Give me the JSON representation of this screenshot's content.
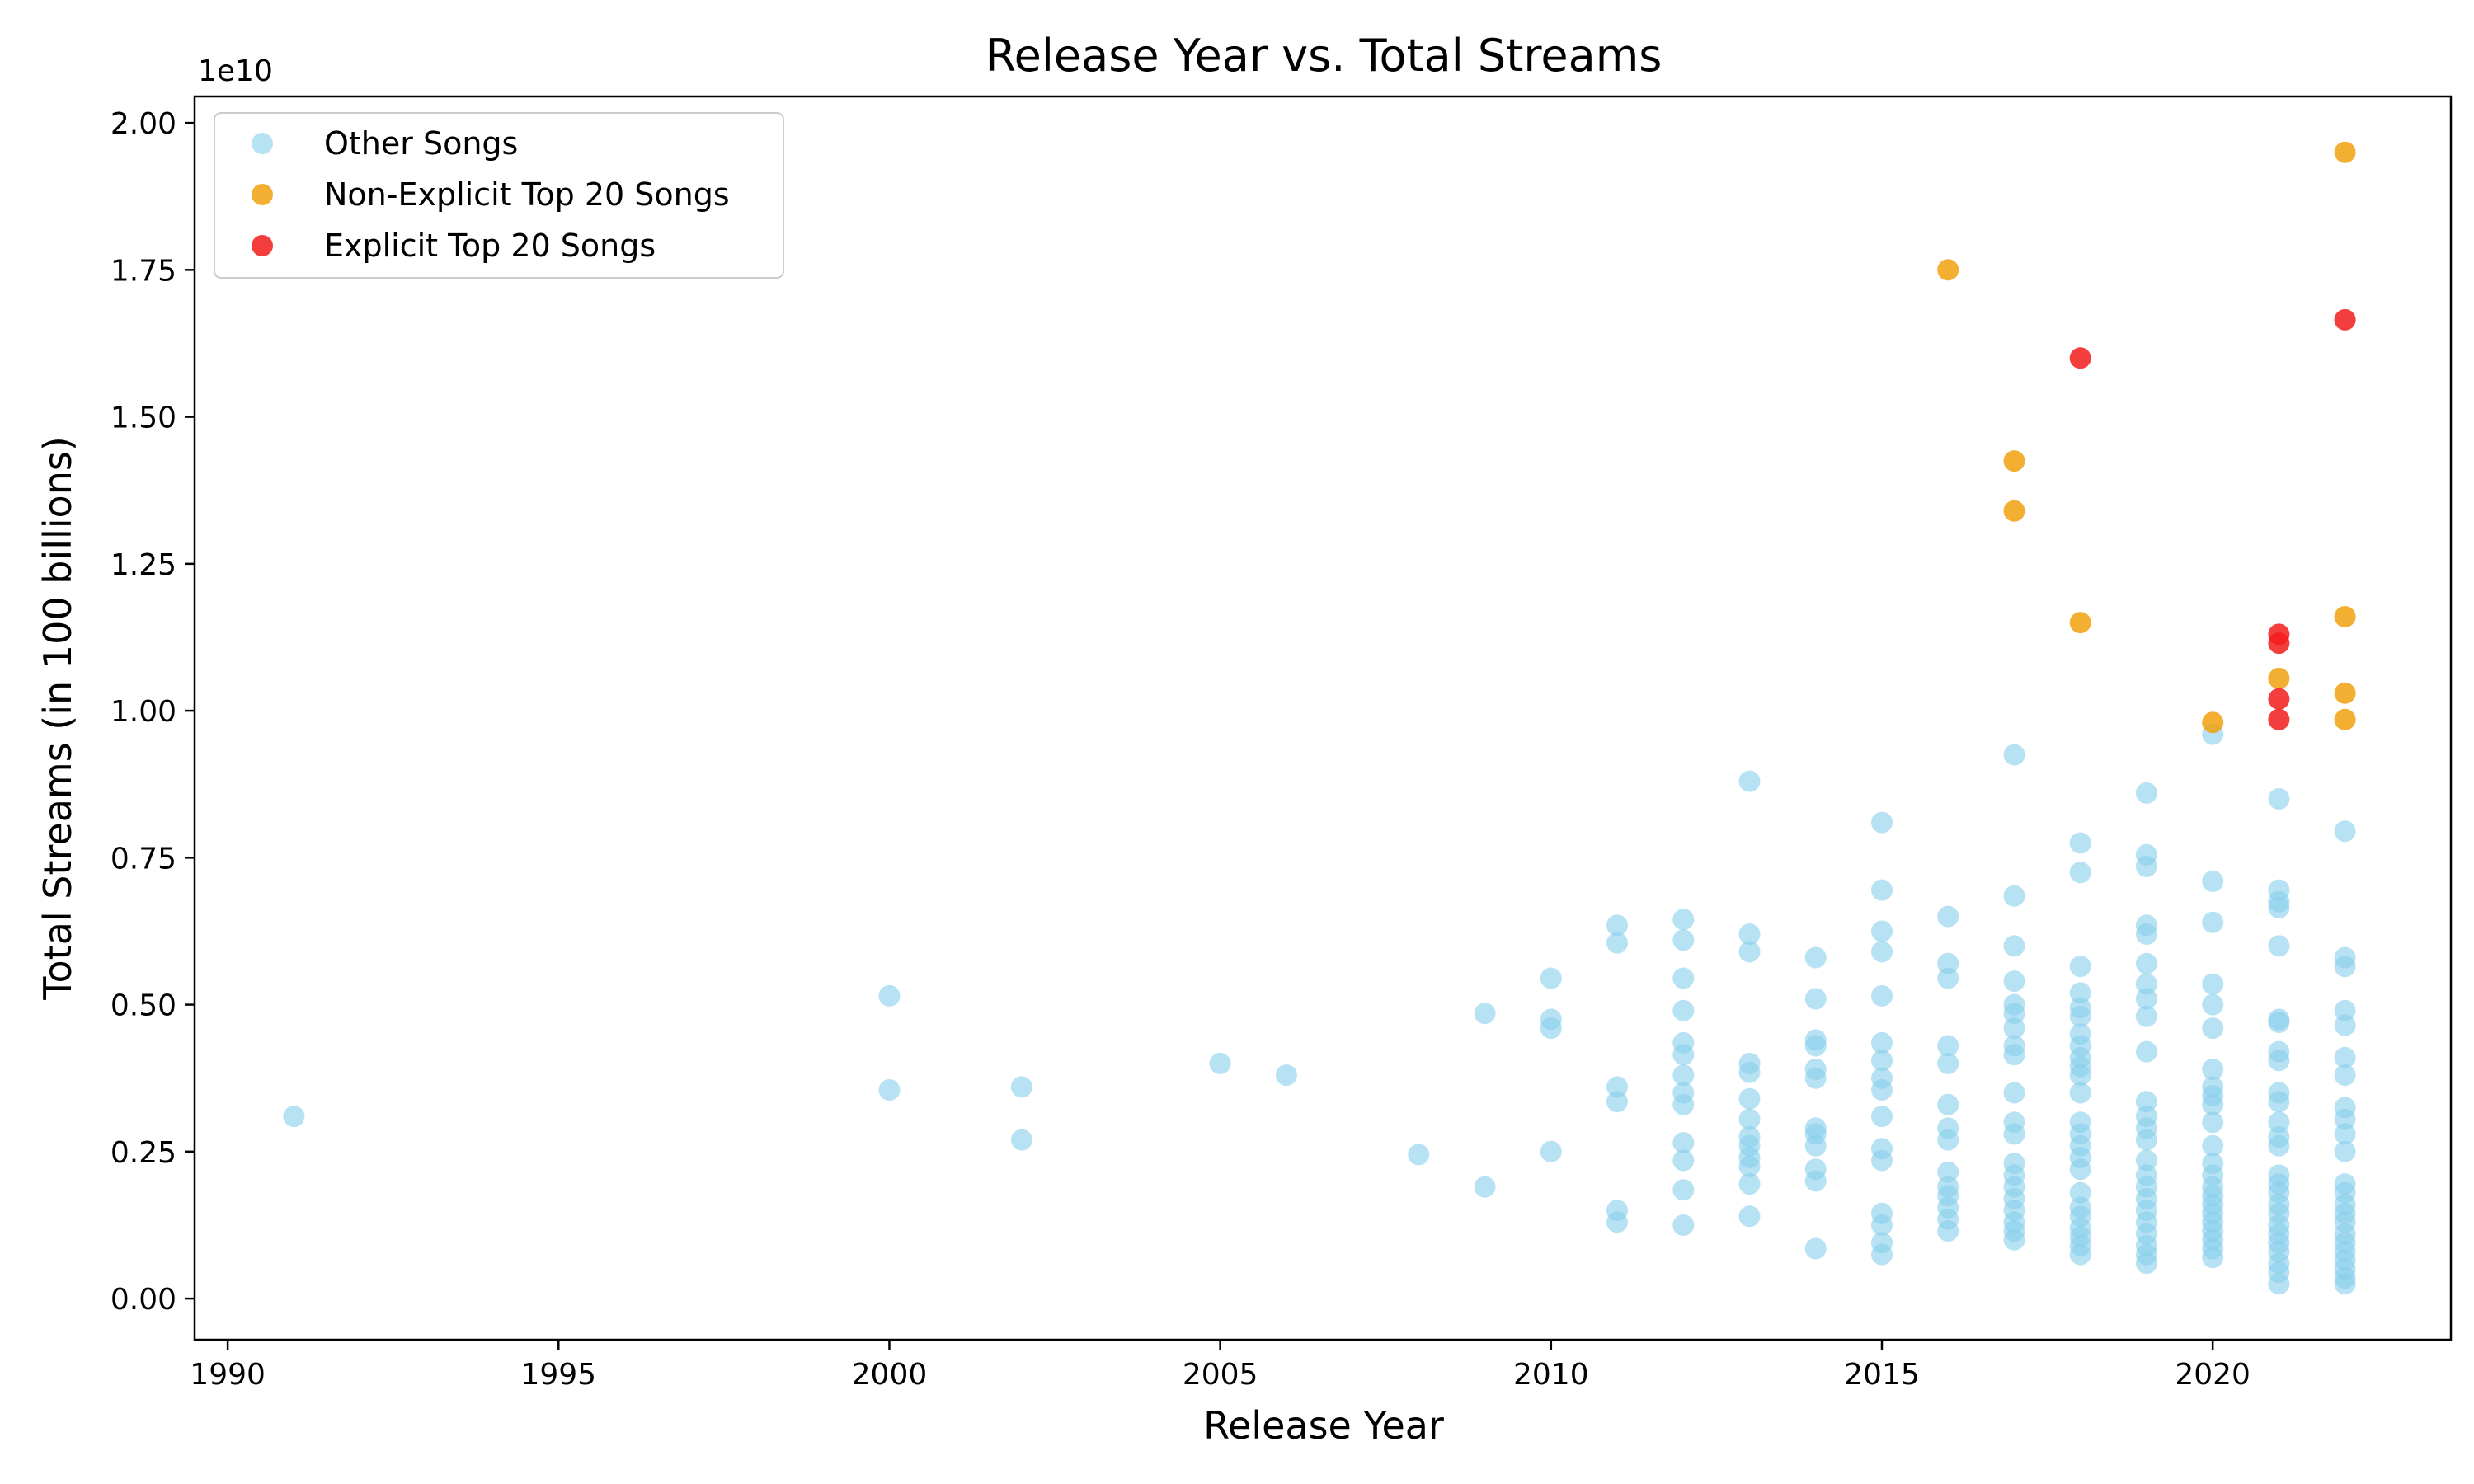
{
  "chart_data": {
    "type": "scatter",
    "title": "Release Year vs. Total Streams",
    "xlabel": "Release Year",
    "ylabel": "Total Streams (in 100 billions)",
    "y_offset_text": "1e10",
    "xlim": [
      1989.5,
      2023.6
    ],
    "ylim": [
      -0.7,
      20.45
    ],
    "x_ticks": [
      1990,
      1995,
      2000,
      2005,
      2010,
      2015,
      2020
    ],
    "x_tick_labels": [
      "1990",
      "1995",
      "2000",
      "2005",
      "2010",
      "2015",
      "2020"
    ],
    "y_ticks": [
      0,
      2.5,
      5,
      7.5,
      10,
      12.5,
      15,
      17.5,
      20
    ],
    "y_tick_labels": [
      "0.00",
      "0.25",
      "0.50",
      "0.75",
      "1.00",
      "1.25",
      "1.50",
      "1.75",
      "2.00"
    ],
    "y_unit_note": "y values are in units of 1e9 streams (axis shows multiples of 1e10)",
    "grid": false,
    "legend_position": "top-left",
    "series": [
      {
        "name": "Other Songs",
        "color": "#87CEEB",
        "points": [
          [
            1991,
            3.1
          ],
          [
            2000,
            5.15
          ],
          [
            2000,
            3.55
          ],
          [
            2002,
            3.6
          ],
          [
            2002,
            2.7
          ],
          [
            2005,
            4.0
          ],
          [
            2006,
            3.8
          ],
          [
            2008,
            2.45
          ],
          [
            2009,
            4.85
          ],
          [
            2009,
            1.9
          ],
          [
            2010,
            5.45
          ],
          [
            2010,
            4.75
          ],
          [
            2010,
            4.6
          ],
          [
            2010,
            2.5
          ],
          [
            2011,
            6.35
          ],
          [
            2011,
            6.05
          ],
          [
            2011,
            3.6
          ],
          [
            2011,
            3.35
          ],
          [
            2011,
            1.5
          ],
          [
            2011,
            1.3
          ],
          [
            2012,
            6.45
          ],
          [
            2012,
            6.1
          ],
          [
            2012,
            5.45
          ],
          [
            2012,
            4.9
          ],
          [
            2012,
            4.35
          ],
          [
            2012,
            4.15
          ],
          [
            2012,
            3.8
          ],
          [
            2012,
            3.5
          ],
          [
            2012,
            3.3
          ],
          [
            2012,
            2.65
          ],
          [
            2012,
            2.35
          ],
          [
            2012,
            1.85
          ],
          [
            2012,
            1.25
          ],
          [
            2013,
            8.8
          ],
          [
            2013,
            6.2
          ],
          [
            2013,
            5.9
          ],
          [
            2013,
            4.0
          ],
          [
            2013,
            3.85
          ],
          [
            2013,
            3.4
          ],
          [
            2013,
            3.05
          ],
          [
            2013,
            2.75
          ],
          [
            2013,
            2.6
          ],
          [
            2013,
            2.4
          ],
          [
            2013,
            2.25
          ],
          [
            2013,
            1.95
          ],
          [
            2013,
            1.4
          ],
          [
            2014,
            5.8
          ],
          [
            2014,
            5.1
          ],
          [
            2014,
            4.4
          ],
          [
            2014,
            4.3
          ],
          [
            2014,
            3.9
          ],
          [
            2014,
            3.75
          ],
          [
            2014,
            2.9
          ],
          [
            2014,
            2.8
          ],
          [
            2014,
            2.6
          ],
          [
            2014,
            2.2
          ],
          [
            2014,
            2.0
          ],
          [
            2014,
            0.85
          ],
          [
            2015,
            8.1
          ],
          [
            2015,
            6.95
          ],
          [
            2015,
            6.25
          ],
          [
            2015,
            5.9
          ],
          [
            2015,
            5.15
          ],
          [
            2015,
            4.35
          ],
          [
            2015,
            4.05
          ],
          [
            2015,
            3.75
          ],
          [
            2015,
            3.55
          ],
          [
            2015,
            3.1
          ],
          [
            2015,
            2.55
          ],
          [
            2015,
            2.35
          ],
          [
            2015,
            1.45
          ],
          [
            2015,
            1.25
          ],
          [
            2015,
            0.95
          ],
          [
            2015,
            0.75
          ],
          [
            2016,
            6.5
          ],
          [
            2016,
            5.7
          ],
          [
            2016,
            5.45
          ],
          [
            2016,
            4.3
          ],
          [
            2016,
            4.0
          ],
          [
            2016,
            3.3
          ],
          [
            2016,
            2.9
          ],
          [
            2016,
            2.7
          ],
          [
            2016,
            2.15
          ],
          [
            2016,
            1.9
          ],
          [
            2016,
            1.75
          ],
          [
            2016,
            1.55
          ],
          [
            2016,
            1.35
          ],
          [
            2016,
            1.15
          ],
          [
            2017,
            9.25
          ],
          [
            2017,
            6.85
          ],
          [
            2017,
            6.0
          ],
          [
            2017,
            5.4
          ],
          [
            2017,
            5.0
          ],
          [
            2017,
            4.85
          ],
          [
            2017,
            4.6
          ],
          [
            2017,
            4.3
          ],
          [
            2017,
            4.15
          ],
          [
            2017,
            3.5
          ],
          [
            2017,
            3.0
          ],
          [
            2017,
            2.8
          ],
          [
            2017,
            2.3
          ],
          [
            2017,
            2.1
          ],
          [
            2017,
            1.9
          ],
          [
            2017,
            1.7
          ],
          [
            2017,
            1.5
          ],
          [
            2017,
            1.3
          ],
          [
            2017,
            1.15
          ],
          [
            2017,
            1.0
          ],
          [
            2018,
            7.75
          ],
          [
            2018,
            7.25
          ],
          [
            2018,
            5.65
          ],
          [
            2018,
            5.2
          ],
          [
            2018,
            4.95
          ],
          [
            2018,
            4.8
          ],
          [
            2018,
            4.5
          ],
          [
            2018,
            4.3
          ],
          [
            2018,
            4.1
          ],
          [
            2018,
            3.95
          ],
          [
            2018,
            3.8
          ],
          [
            2018,
            3.5
          ],
          [
            2018,
            3.0
          ],
          [
            2018,
            2.8
          ],
          [
            2018,
            2.6
          ],
          [
            2018,
            2.4
          ],
          [
            2018,
            2.2
          ],
          [
            2018,
            1.8
          ],
          [
            2018,
            1.55
          ],
          [
            2018,
            1.4
          ],
          [
            2018,
            1.2
          ],
          [
            2018,
            1.05
          ],
          [
            2018,
            0.9
          ],
          [
            2018,
            0.75
          ],
          [
            2019,
            8.6
          ],
          [
            2019,
            7.55
          ],
          [
            2019,
            7.35
          ],
          [
            2019,
            6.35
          ],
          [
            2019,
            6.2
          ],
          [
            2019,
            5.7
          ],
          [
            2019,
            5.35
          ],
          [
            2019,
            5.1
          ],
          [
            2019,
            4.8
          ],
          [
            2019,
            4.2
          ],
          [
            2019,
            3.35
          ],
          [
            2019,
            3.1
          ],
          [
            2019,
            2.9
          ],
          [
            2019,
            2.7
          ],
          [
            2019,
            2.35
          ],
          [
            2019,
            2.1
          ],
          [
            2019,
            1.9
          ],
          [
            2019,
            1.7
          ],
          [
            2019,
            1.5
          ],
          [
            2019,
            1.3
          ],
          [
            2019,
            1.1
          ],
          [
            2019,
            0.9
          ],
          [
            2019,
            0.75
          ],
          [
            2019,
            0.6
          ],
          [
            2020,
            9.6
          ],
          [
            2020,
            7.1
          ],
          [
            2020,
            6.4
          ],
          [
            2020,
            5.35
          ],
          [
            2020,
            5.0
          ],
          [
            2020,
            4.6
          ],
          [
            2020,
            3.9
          ],
          [
            2020,
            3.6
          ],
          [
            2020,
            3.45
          ],
          [
            2020,
            3.3
          ],
          [
            2020,
            3.0
          ],
          [
            2020,
            2.6
          ],
          [
            2020,
            2.3
          ],
          [
            2020,
            2.1
          ],
          [
            2020,
            1.9
          ],
          [
            2020,
            1.75
          ],
          [
            2020,
            1.6
          ],
          [
            2020,
            1.45
          ],
          [
            2020,
            1.3
          ],
          [
            2020,
            1.15
          ],
          [
            2020,
            1.0
          ],
          [
            2020,
            0.85
          ],
          [
            2020,
            0.7
          ],
          [
            2021,
            8.5
          ],
          [
            2021,
            6.95
          ],
          [
            2021,
            6.75
          ],
          [
            2021,
            6.65
          ],
          [
            2021,
            6.0
          ],
          [
            2021,
            4.75
          ],
          [
            2021,
            4.7
          ],
          [
            2021,
            4.2
          ],
          [
            2021,
            4.05
          ],
          [
            2021,
            3.5
          ],
          [
            2021,
            3.35
          ],
          [
            2021,
            3.0
          ],
          [
            2021,
            2.75
          ],
          [
            2021,
            2.6
          ],
          [
            2021,
            2.1
          ],
          [
            2021,
            1.95
          ],
          [
            2021,
            1.8
          ],
          [
            2021,
            1.6
          ],
          [
            2021,
            1.45
          ],
          [
            2021,
            1.25
          ],
          [
            2021,
            1.1
          ],
          [
            2021,
            0.95
          ],
          [
            2021,
            0.8
          ],
          [
            2021,
            0.6
          ],
          [
            2021,
            0.45
          ],
          [
            2021,
            0.25
          ],
          [
            2022,
            7.95
          ],
          [
            2022,
            5.8
          ],
          [
            2022,
            5.65
          ],
          [
            2022,
            4.9
          ],
          [
            2022,
            4.65
          ],
          [
            2022,
            4.1
          ],
          [
            2022,
            3.8
          ],
          [
            2022,
            3.25
          ],
          [
            2022,
            3.05
          ],
          [
            2022,
            2.8
          ],
          [
            2022,
            2.5
          ],
          [
            2022,
            1.95
          ],
          [
            2022,
            1.8
          ],
          [
            2022,
            1.6
          ],
          [
            2022,
            1.45
          ],
          [
            2022,
            1.3
          ],
          [
            2022,
            1.1
          ],
          [
            2022,
            0.95
          ],
          [
            2022,
            0.8
          ],
          [
            2022,
            0.65
          ],
          [
            2022,
            0.5
          ],
          [
            2022,
            0.35
          ],
          [
            2022,
            0.25
          ]
        ]
      },
      {
        "name": "Non-Explicit Top 20 Songs",
        "color": "#F0A10E",
        "points": [
          [
            2016,
            17.5
          ],
          [
            2017,
            14.25
          ],
          [
            2017,
            13.4
          ],
          [
            2018,
            11.5
          ],
          [
            2020,
            9.8
          ],
          [
            2021,
            10.55
          ],
          [
            2022,
            19.5
          ],
          [
            2022,
            11.6
          ],
          [
            2022,
            10.3
          ],
          [
            2022,
            9.85
          ]
        ]
      },
      {
        "name": "Explicit Top 20 Songs",
        "color": "#F21C1C",
        "points": [
          [
            2018,
            16.0
          ],
          [
            2021,
            11.3
          ],
          [
            2021,
            11.15
          ],
          [
            2021,
            10.2
          ],
          [
            2021,
            9.85
          ],
          [
            2022,
            16.65
          ]
        ]
      }
    ]
  }
}
